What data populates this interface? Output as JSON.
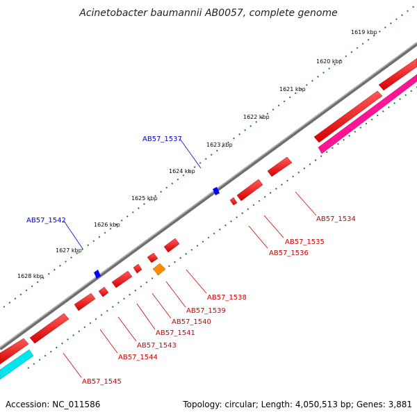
{
  "title": "Acinetobacter baumannii AB0057, complete genome",
  "footer": {
    "accession": "Accession: NC_011586",
    "summary": "Topology: circular; Length: 4,050,513 bp; Genes: 3,881"
  },
  "colors": {
    "backbone": "#8a8a8a",
    "ticks": "#1e7a1e",
    "gene_forward_label": "#0000cc",
    "gene_reverse_label": "#cc0000",
    "gene_red": "#ff0000",
    "gene_blue": "#0000ff",
    "gene_orange": "#ff8c00",
    "gene_magenta": "#ff1493",
    "gene_cyan": "#00e5ee"
  },
  "scale": {
    "unit": "kbp",
    "labels": [
      "1619 kbp",
      "1620 kbp",
      "1621 kbp",
      "1622 kbp",
      "1623 kbp",
      "1624 kbp",
      "1625 kbp",
      "1626 kbp",
      "1627 kbp",
      "1628 kbp"
    ]
  },
  "gene_labels": {
    "forward": [
      "AB57_1537",
      "AB57_1542"
    ],
    "reverse": [
      "AB57_1534",
      "AB57_1535",
      "AB57_1536",
      "AB57_1538",
      "AB57_1539",
      "AB57_1540",
      "AB57_1541",
      "AB57_1543",
      "AB57_1544",
      "AB57_1545"
    ]
  }
}
